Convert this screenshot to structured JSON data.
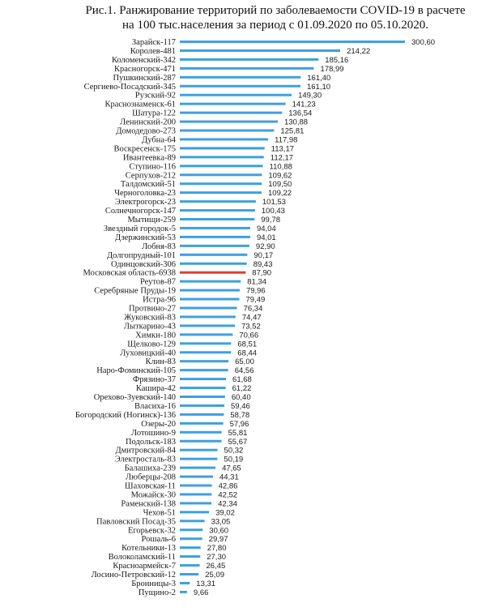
{
  "title_line1": "Рис.1. Ранжирование территорий по заболеваемости COVID-19 в расчете",
  "title_line2": "на 100 тыс.населения за период с 01.09.2020 по 05.10.2020.",
  "colors": {
    "bar": "#3fa0df",
    "highlight": "#d9412b"
  },
  "chart_data": {
    "type": "bar",
    "orientation": "horizontal",
    "highlight_category": "Московская область-6938",
    "categories": [
      "Зарайск-117",
      "Королев-481",
      "Коломенский-342",
      "Красногорск-471",
      "Пушкинский-287",
      "Сергиево-Посадский-345",
      "Рузский-92",
      "Краснознаменск-61",
      "Шатура-122",
      "Ленинский-200",
      "Домодедово-273",
      "Дубна-64",
      "Воскресенск-175",
      "Ивантеевка-89",
      "Ступино-116",
      "Серпухов-212",
      "Талдомский-51",
      "Черноголовка-23",
      "Электрогорск-23",
      "Солнечногорск-147",
      "Мытищи-259",
      "Звездный городок-5",
      "Дзержинский-53",
      "Лобня-83",
      "Долгопрудный-101",
      "Одинцовский-306",
      "Московская область-6938",
      "Реутов-87",
      "Серебряные Пруды-19",
      "Истра-96",
      "Протвино-27",
      "Жуковский-83",
      "Лыткарино-43",
      "Химки-180",
      "Щелково-129",
      "Луховицкий-40",
      "Клин-83",
      "Наро-Фоминский-105",
      "Фрязино-37",
      "Кашира-42",
      "Орехово-Зуевский-140",
      "Власиха-16",
      "Богородский (Ногинск)-136",
      "Озеры-20",
      "Лотошино-9",
      "Подольск-183",
      "Дмитровский-84",
      "Электросталь-83",
      "Балашиха-239",
      "Люберцы-208",
      "Шаховская-11",
      "Можайск-30",
      "Раменский-138",
      "Чехов-51",
      "Павловский Посад-35",
      "Егорьевск-32",
      "Рошаль-6",
      "Котельники-13",
      "Волоколамский-11",
      "Красноармейск-7",
      "Лосино-Петровский-12",
      "Бронницы-3",
      "Пущино-2"
    ],
    "values": [
      300.6,
      214.22,
      185.16,
      178.99,
      161.4,
      161.1,
      149.3,
      141.23,
      136.54,
      130.88,
      125.81,
      117.98,
      113.17,
      112.17,
      110.88,
      109.62,
      109.5,
      109.22,
      101.53,
      100.43,
      99.78,
      94.04,
      94.01,
      92.9,
      90.17,
      89.43,
      87.9,
      81.34,
      79.96,
      79.49,
      76.34,
      74.47,
      73.52,
      70.66,
      68.51,
      68.44,
      65.0,
      64.56,
      61.68,
      61.22,
      60.4,
      59.46,
      58.78,
      57.96,
      55.81,
      55.67,
      50.32,
      50.19,
      47.65,
      44.31,
      42.86,
      42.52,
      42.34,
      39.02,
      33.05,
      30.6,
      29.97,
      27.8,
      27.3,
      26.45,
      25.09,
      13.31,
      9.66
    ],
    "value_labels": [
      "300,60",
      "214,22",
      "185,16",
      "178,99",
      "161,40",
      "161,10",
      "149,30",
      "141,23",
      "136,54",
      "130,88",
      "125,81",
      "117,98",
      "113,17",
      "112,17",
      "110,88",
      "109,62",
      "109,50",
      "109,22",
      "101,53",
      "100,43",
      "99,78",
      "94,04",
      "94,01",
      "92,90",
      "90,17",
      "89,43",
      "87,90",
      "81,34",
      "79,96",
      "79,49",
      "76,34",
      "74,47",
      "73,52",
      "70,66",
      "68,51",
      "68,44",
      "65,00",
      "64,56",
      "61,68",
      "61,22",
      "60,40",
      "59,46",
      "58,78",
      "57,96",
      "55,81",
      "55,67",
      "50,32",
      "50,19",
      "47,65",
      "44,31",
      "42,86",
      "42,52",
      "42,34",
      "39,02",
      "33,05",
      "30,60",
      "29,97",
      "27,80",
      "27,30",
      "26,45",
      "25,09",
      "13,31",
      "9,66"
    ],
    "xlim": [
      0,
      300.6
    ],
    "grid": false,
    "legend": "none"
  }
}
